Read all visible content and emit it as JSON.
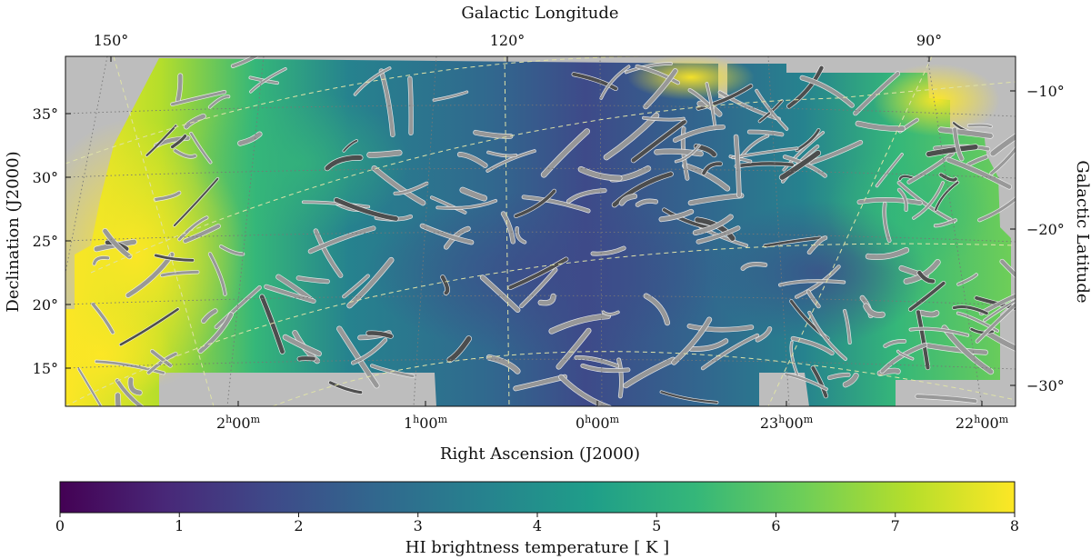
{
  "chart_data": {
    "type": "heatmap",
    "top_axis_label": "Galactic Longitude",
    "bottom_axis_label": "Right Ascension (J2000)",
    "left_axis_label": "Declination (J2000)",
    "right_axis_label": "Galactic Latitude",
    "colorbar_label": "HI brightness temperature [ K ]",
    "colorbar": {
      "min": 0,
      "max": 8,
      "ticks": [
        "0",
        "1",
        "2",
        "3",
        "4",
        "5",
        "6",
        "7",
        "8"
      ],
      "colormap": "viridis",
      "colors": [
        "#440154",
        "#482878",
        "#3e4a89",
        "#31688e",
        "#26828e",
        "#1f9e89",
        "#35b779",
        "#6ece58",
        "#b5de2b",
        "#fde725"
      ]
    },
    "dec_ticks": [
      {
        "value": 35,
        "label": "35°"
      },
      {
        "value": 30,
        "label": "30°"
      },
      {
        "value": 25,
        "label": "25°"
      },
      {
        "value": 20,
        "label": "20°"
      },
      {
        "value": 15,
        "label": "15°"
      }
    ],
    "ra_ticks": [
      {
        "value": "2h00m",
        "base": "2",
        "sup1": "h",
        "mid": "00",
        "sup2": "m"
      },
      {
        "value": "1h00m",
        "base": "1",
        "sup1": "h",
        "mid": "00",
        "sup2": "m"
      },
      {
        "value": "0h00m",
        "base": "0",
        "sup1": "h",
        "mid": "00",
        "sup2": "m"
      },
      {
        "value": "23h00m",
        "base": "23",
        "sup1": "h",
        "mid": "00",
        "sup2": "m"
      },
      {
        "value": "22h00m",
        "base": "22",
        "sup1": "h",
        "mid": "00",
        "sup2": "m"
      }
    ],
    "glon_ticks": [
      {
        "value": 150,
        "label": "150°"
      },
      {
        "value": 120,
        "label": "120°"
      },
      {
        "value": 90,
        "label": "90°"
      }
    ],
    "glat_ticks": [
      {
        "value": -10,
        "label": "−10°"
      },
      {
        "value": -20,
        "label": "−20°"
      },
      {
        "value": -30,
        "label": "−30°"
      }
    ],
    "ra_range_hours": [
      2.85,
      21.7
    ],
    "dec_range_deg": [
      12,
      39.5
    ],
    "grid": true,
    "overlay": "grey filamentary HI structures",
    "masked_color": "#bdbdbd"
  }
}
